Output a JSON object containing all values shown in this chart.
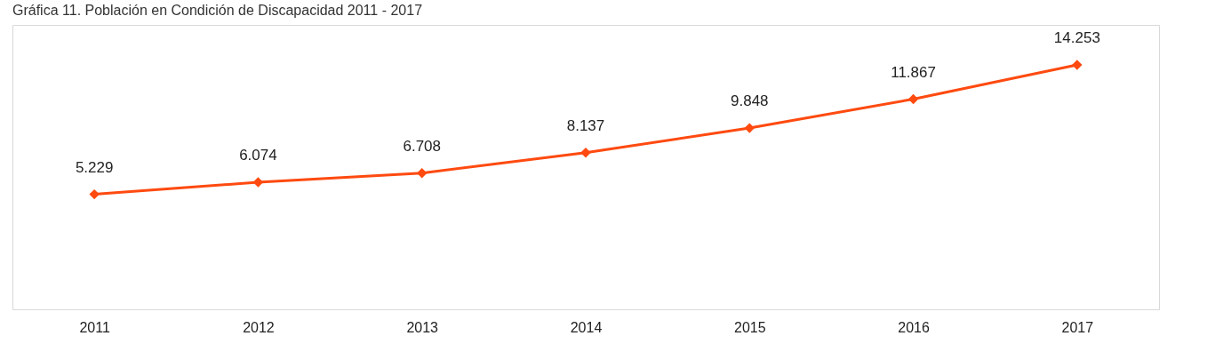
{
  "chart_data": {
    "type": "line",
    "title": "Gráfica 11. Población en Condición de Discapacidad 2011 - 2017",
    "categories": [
      "2011",
      "2012",
      "2013",
      "2014",
      "2015",
      "2016",
      "2017"
    ],
    "values": [
      5229,
      6074,
      6708,
      8137,
      9848,
      11867,
      14253
    ],
    "value_labels": [
      "5.229",
      "6.074",
      "6.708",
      "8.137",
      "9.848",
      "11.867",
      "14.253"
    ],
    "color": "#ff4a10",
    "marker": "diamond",
    "line_style": "solid"
  }
}
